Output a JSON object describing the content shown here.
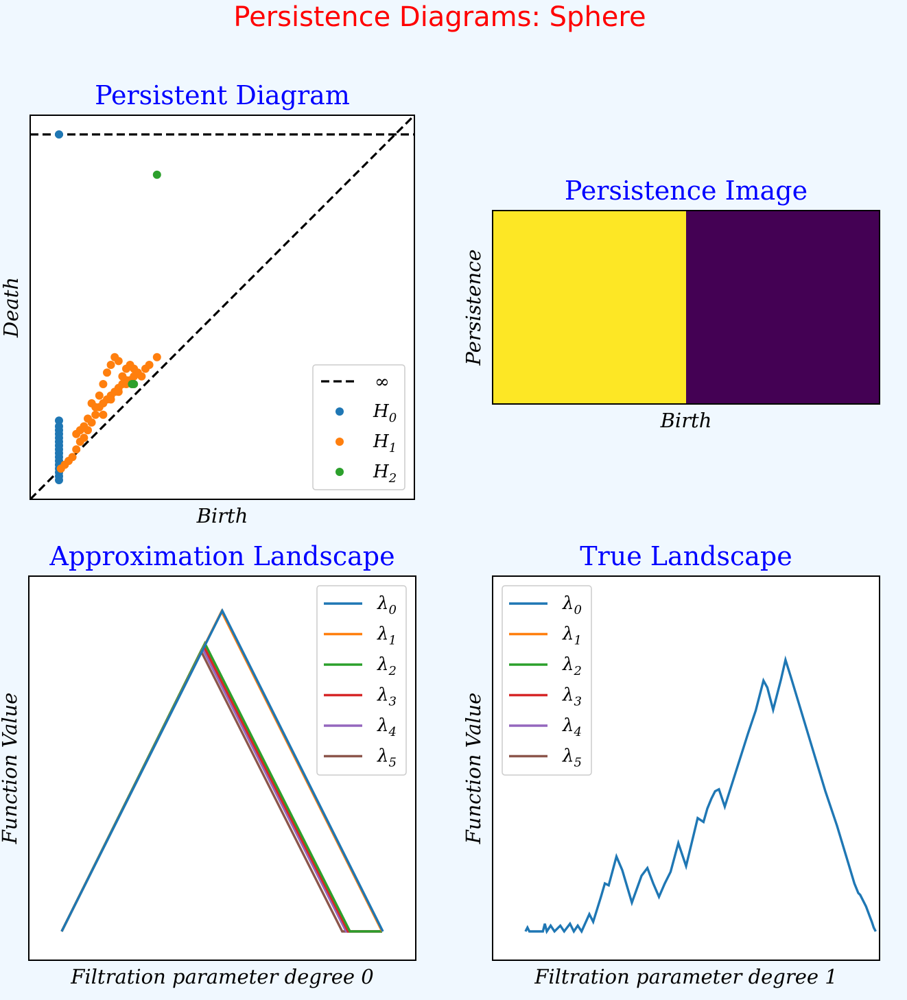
{
  "figure": {
    "title": "Persistence Diagrams:  Sphere",
    "title_color": "#ff0000",
    "background": "#f0f8ff",
    "subtitle_color": "#0000ff"
  },
  "chart_data": [
    {
      "type": "scatter",
      "title": "Persistent Diagram",
      "xlabel": "Birth",
      "ylabel": "Death",
      "xlim": [
        0,
        1
      ],
      "ylim": [
        0,
        1
      ],
      "ticks": false,
      "reference_lines": [
        {
          "kind": "diagonal",
          "style": "dashed",
          "color": "#000000"
        },
        {
          "kind": "infinity",
          "label": "∞",
          "y": 0.95,
          "style": "dashed",
          "color": "#000000"
        }
      ],
      "legend": {
        "position": "lower-right"
      },
      "series": [
        {
          "name": "H",
          "sub": "0",
          "color": "#1f77b4",
          "points": [
            [
              0.075,
              0.95
            ],
            [
              0.075,
              0.205
            ],
            [
              0.075,
              0.19
            ],
            [
              0.075,
              0.18
            ],
            [
              0.075,
              0.17
            ],
            [
              0.075,
              0.16
            ],
            [
              0.075,
              0.15
            ],
            [
              0.075,
              0.14
            ],
            [
              0.075,
              0.13
            ],
            [
              0.075,
              0.12
            ],
            [
              0.075,
              0.11
            ],
            [
              0.075,
              0.1
            ],
            [
              0.075,
              0.09
            ],
            [
              0.075,
              0.08
            ],
            [
              0.075,
              0.07
            ],
            [
              0.075,
              0.06
            ],
            [
              0.075,
              0.05
            ]
          ]
        },
        {
          "name": "H",
          "sub": "1",
          "color": "#ff7f0e",
          "points": [
            [
              0.08,
              0.08
            ],
            [
              0.09,
              0.09
            ],
            [
              0.1,
              0.1
            ],
            [
              0.11,
              0.11
            ],
            [
              0.12,
              0.13
            ],
            [
              0.13,
              0.15
            ],
            [
              0.14,
              0.16
            ],
            [
              0.15,
              0.18
            ],
            [
              0.16,
              0.2
            ],
            [
              0.17,
              0.22
            ],
            [
              0.18,
              0.24
            ],
            [
              0.19,
              0.25
            ],
            [
              0.2,
              0.26
            ],
            [
              0.21,
              0.27
            ],
            [
              0.22,
              0.28
            ],
            [
              0.23,
              0.29
            ],
            [
              0.24,
              0.3
            ],
            [
              0.25,
              0.31
            ],
            [
              0.26,
              0.31
            ],
            [
              0.27,
              0.32
            ],
            [
              0.17,
              0.24
            ],
            [
              0.18,
              0.27
            ],
            [
              0.19,
              0.3
            ],
            [
              0.2,
              0.33
            ],
            [
              0.21,
              0.35
            ],
            [
              0.22,
              0.37
            ],
            [
              0.23,
              0.36
            ],
            [
              0.24,
              0.32
            ],
            [
              0.25,
              0.34
            ],
            [
              0.26,
              0.35
            ],
            [
              0.27,
              0.34
            ],
            [
              0.28,
              0.33
            ],
            [
              0.19,
              0.22
            ],
            [
              0.21,
              0.26
            ],
            [
              0.23,
              0.28
            ],
            [
              0.25,
              0.3
            ],
            [
              0.12,
              0.17
            ],
            [
              0.13,
              0.18
            ],
            [
              0.14,
              0.19
            ],
            [
              0.15,
              0.21
            ],
            [
              0.29,
              0.32
            ],
            [
              0.3,
              0.34
            ],
            [
              0.31,
              0.35
            ],
            [
              0.16,
              0.25
            ],
            [
              0.33,
              0.37
            ]
          ]
        },
        {
          "name": "H",
          "sub": "2",
          "color": "#2ca02c",
          "points": [
            [
              0.33,
              0.845
            ],
            [
              0.265,
              0.3
            ],
            [
              0.27,
              0.3
            ]
          ]
        }
      ]
    },
    {
      "type": "heatmap",
      "title": "Persistence Image",
      "xlabel": "Birth",
      "ylabel": "Persistence",
      "ticks": false,
      "rows": 1,
      "cols": 2,
      "cells": [
        [
          "#fde725",
          "#440154"
        ]
      ]
    },
    {
      "type": "line",
      "title": "Approximation Landscape",
      "xlabel": "Filtration parameter degree  0",
      "ylabel": "Function Value",
      "xlim": [
        0,
        1
      ],
      "ylim": [
        0,
        1
      ],
      "ticks": false,
      "legend": {
        "position": "top-right"
      },
      "series": [
        {
          "name": "λ",
          "sub": "0",
          "color": "#1f77b4",
          "points": [
            [
              0.085,
              0.075
            ],
            [
              0.5,
              0.91
            ],
            [
              0.915,
              0.075
            ]
          ]
        },
        {
          "name": "λ",
          "sub": "1",
          "color": "#ff7f0e",
          "points": [
            [
              0.085,
              0.075
            ],
            [
              0.498,
              0.908
            ],
            [
              0.913,
              0.075
            ]
          ]
        },
        {
          "name": "λ",
          "sub": "2",
          "color": "#2ca02c",
          "points": [
            [
              0.085,
              0.075
            ],
            [
              0.455,
              0.825
            ],
            [
              0.83,
              0.075
            ],
            [
              0.913,
              0.075
            ]
          ]
        },
        {
          "name": "λ",
          "sub": "3",
          "color": "#d62728",
          "points": [
            [
              0.085,
              0.075
            ],
            [
              0.452,
              0.818
            ],
            [
              0.825,
              0.075
            ],
            [
              0.913,
              0.075
            ]
          ]
        },
        {
          "name": "λ",
          "sub": "4",
          "color": "#9467bd",
          "points": [
            [
              0.085,
              0.075
            ],
            [
              0.449,
              0.812
            ],
            [
              0.82,
              0.075
            ],
            [
              0.913,
              0.075
            ]
          ]
        },
        {
          "name": "λ",
          "sub": "5",
          "color": "#8c564b",
          "points": [
            [
              0.085,
              0.075
            ],
            [
              0.445,
              0.805
            ],
            [
              0.81,
              0.075
            ],
            [
              0.913,
              0.075
            ]
          ]
        }
      ]
    },
    {
      "type": "line",
      "title": "True Landscape",
      "xlabel": "Filtration parameter degree  1",
      "ylabel": "Function Value",
      "xlim": [
        0,
        1
      ],
      "ylim": [
        0,
        1
      ],
      "ticks": false,
      "legend": {
        "position": "top-left"
      },
      "series": [
        {
          "name": "λ",
          "sub": "0",
          "color": "#1f77b4",
          "points": [
            [
              0.085,
              0.075
            ],
            [
              0.09,
              0.085
            ],
            [
              0.095,
              0.075
            ],
            [
              0.13,
              0.075
            ],
            [
              0.135,
              0.095
            ],
            [
              0.14,
              0.075
            ],
            [
              0.15,
              0.09
            ],
            [
              0.16,
              0.075
            ],
            [
              0.175,
              0.09
            ],
            [
              0.185,
              0.075
            ],
            [
              0.2,
              0.095
            ],
            [
              0.21,
              0.075
            ],
            [
              0.22,
              0.09
            ],
            [
              0.23,
              0.075
            ],
            [
              0.25,
              0.12
            ],
            [
              0.26,
              0.1
            ],
            [
              0.28,
              0.165
            ],
            [
              0.29,
              0.2
            ],
            [
              0.3,
              0.195
            ],
            [
              0.32,
              0.27
            ],
            [
              0.335,
              0.235
            ],
            [
              0.36,
              0.15
            ],
            [
              0.385,
              0.22
            ],
            [
              0.4,
              0.24
            ],
            [
              0.415,
              0.2
            ],
            [
              0.43,
              0.165
            ],
            [
              0.445,
              0.2
            ],
            [
              0.46,
              0.23
            ],
            [
              0.48,
              0.305
            ],
            [
              0.5,
              0.245
            ],
            [
              0.53,
              0.37
            ],
            [
              0.545,
              0.36
            ],
            [
              0.555,
              0.395
            ],
            [
              0.565,
              0.42
            ],
            [
              0.575,
              0.44
            ],
            [
              0.585,
              0.445
            ],
            [
              0.6,
              0.4
            ],
            [
              0.63,
              0.495
            ],
            [
              0.66,
              0.59
            ],
            [
              0.68,
              0.65
            ],
            [
              0.7,
              0.728
            ],
            [
              0.71,
              0.71
            ],
            [
              0.725,
              0.652
            ],
            [
              0.745,
              0.73
            ],
            [
              0.757,
              0.782
            ],
            [
              0.77,
              0.74
            ],
            [
              0.8,
              0.64
            ],
            [
              0.83,
              0.54
            ],
            [
              0.86,
              0.44
            ],
            [
              0.89,
              0.35
            ],
            [
              0.92,
              0.25
            ],
            [
              0.935,
              0.2
            ],
            [
              0.945,
              0.175
            ],
            [
              0.95,
              0.17
            ],
            [
              0.965,
              0.14
            ],
            [
              0.98,
              0.1
            ],
            [
              0.985,
              0.085
            ],
            [
              0.99,
              0.075
            ]
          ]
        }
      ]
    }
  ]
}
